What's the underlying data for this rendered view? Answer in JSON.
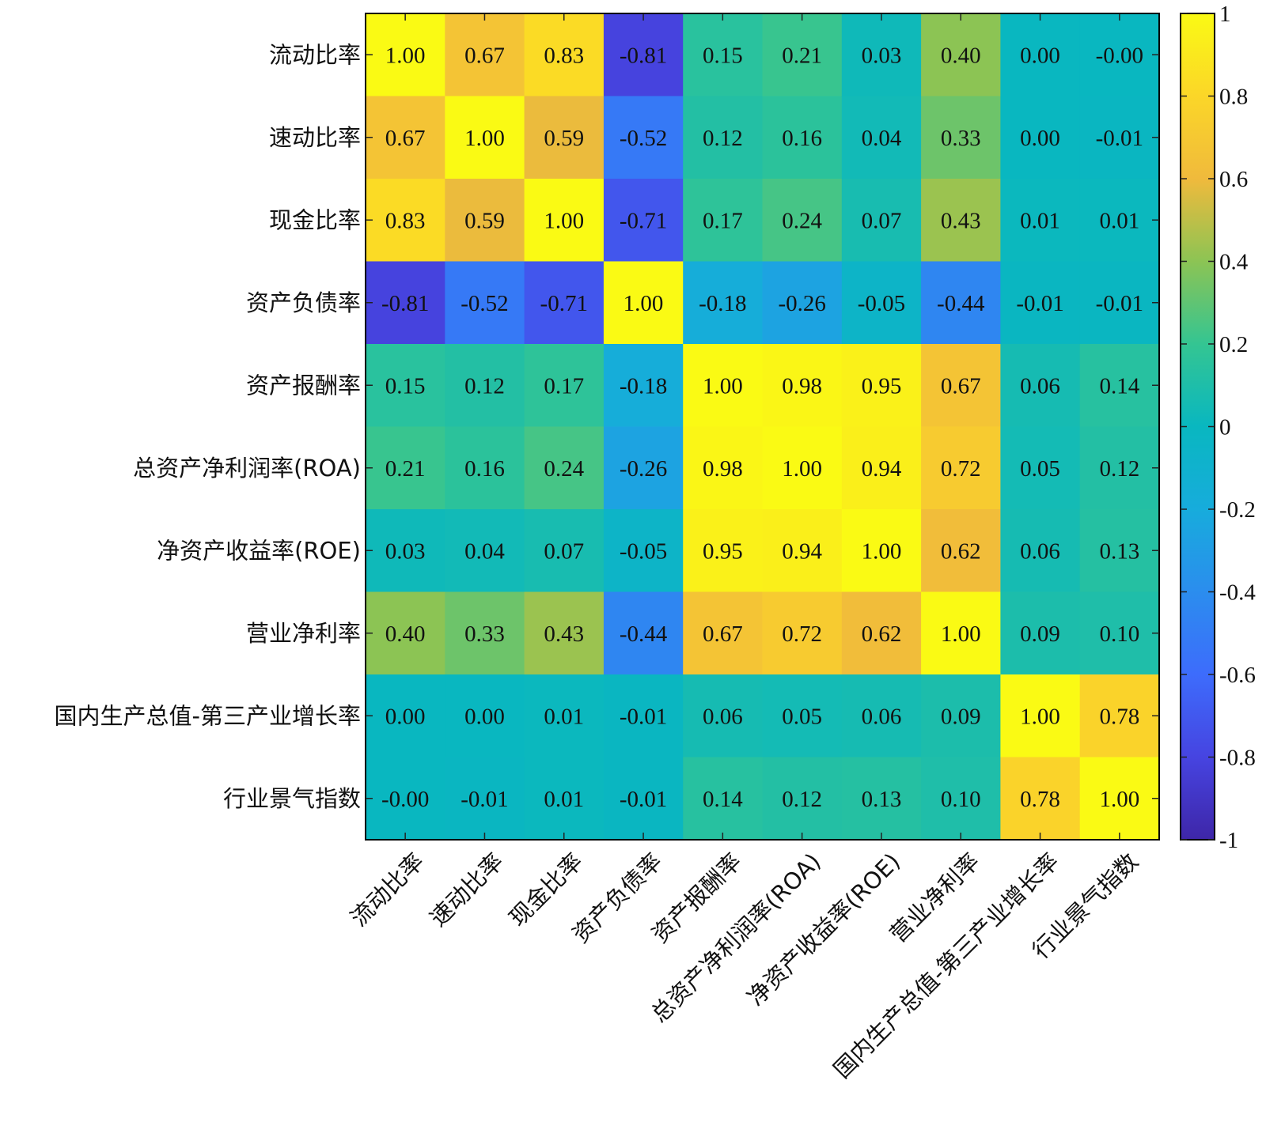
{
  "chart_data": {
    "type": "heatmap",
    "title": "",
    "xlabel": "",
    "ylabel": "",
    "row_labels": [
      "流动比率",
      "速动比率",
      "现金比率",
      "资产负债率",
      "资产报酬率",
      "总资产净利润率(ROA)",
      "净资产收益率(ROE)",
      "营业净利率",
      "国内生产总值-第三产业增长率",
      "行业景气指数"
    ],
    "col_labels": [
      "流动比率",
      "速动比率",
      "现金比率",
      "资产负债率",
      "资产报酬率",
      "总资产净利润率(ROA)",
      "净资产收益率(ROE)",
      "营业净利率",
      "国内生产总值-第三产业增长率",
      "行业景气指数"
    ],
    "values": [
      [
        1.0,
        0.67,
        0.83,
        -0.81,
        0.15,
        0.21,
        0.03,
        0.4,
        0.0,
        -0.0
      ],
      [
        0.67,
        1.0,
        0.59,
        -0.52,
        0.12,
        0.16,
        0.04,
        0.33,
        0.0,
        -0.01
      ],
      [
        0.83,
        0.59,
        1.0,
        -0.71,
        0.17,
        0.24,
        0.07,
        0.43,
        0.01,
        0.01
      ],
      [
        -0.81,
        -0.52,
        -0.71,
        1.0,
        -0.18,
        -0.26,
        -0.05,
        -0.44,
        -0.01,
        -0.01
      ],
      [
        0.15,
        0.12,
        0.17,
        -0.18,
        1.0,
        0.98,
        0.95,
        0.67,
        0.06,
        0.14
      ],
      [
        0.21,
        0.16,
        0.24,
        -0.26,
        0.98,
        1.0,
        0.94,
        0.72,
        0.05,
        0.12
      ],
      [
        0.03,
        0.04,
        0.07,
        -0.05,
        0.95,
        0.94,
        1.0,
        0.62,
        0.06,
        0.13
      ],
      [
        0.4,
        0.33,
        0.43,
        -0.44,
        0.67,
        0.72,
        0.62,
        1.0,
        0.09,
        0.1
      ],
      [
        0.0,
        0.0,
        0.01,
        -0.01,
        0.06,
        0.05,
        0.06,
        0.09,
        1.0,
        0.78
      ],
      [
        -0.0,
        -0.01,
        0.01,
        -0.01,
        0.14,
        0.12,
        0.13,
        0.1,
        0.78,
        1.0
      ]
    ],
    "value_labels": [
      [
        "1.00",
        "0.67",
        "0.83",
        "-0.81",
        "0.15",
        "0.21",
        "0.03",
        "0.40",
        "0.00",
        "-0.00"
      ],
      [
        "0.67",
        "1.00",
        "0.59",
        "-0.52",
        "0.12",
        "0.16",
        "0.04",
        "0.33",
        "0.00",
        "-0.01"
      ],
      [
        "0.83",
        "0.59",
        "1.00",
        "-0.71",
        "0.17",
        "0.24",
        "0.07",
        "0.43",
        "0.01",
        "0.01"
      ],
      [
        "-0.81",
        "-0.52",
        "-0.71",
        "1.00",
        "-0.18",
        "-0.26",
        "-0.05",
        "-0.44",
        "-0.01",
        "-0.01"
      ],
      [
        "0.15",
        "0.12",
        "0.17",
        "-0.18",
        "1.00",
        "0.98",
        "0.95",
        "0.67",
        "0.06",
        "0.14"
      ],
      [
        "0.21",
        "0.16",
        "0.24",
        "-0.26",
        "0.98",
        "1.00",
        "0.94",
        "0.72",
        "0.05",
        "0.12"
      ],
      [
        "0.03",
        "0.04",
        "0.07",
        "-0.05",
        "0.95",
        "0.94",
        "1.00",
        "0.62",
        "0.06",
        "0.13"
      ],
      [
        "0.40",
        "0.33",
        "0.43",
        "-0.44",
        "0.67",
        "0.72",
        "0.62",
        "1.00",
        "0.09",
        "0.10"
      ],
      [
        "0.00",
        "0.00",
        "0.01",
        "-0.01",
        "0.06",
        "0.05",
        "0.06",
        "0.09",
        "1.00",
        "0.78"
      ],
      [
        "-0.00",
        "-0.01",
        "0.01",
        "-0.01",
        "0.14",
        "0.12",
        "0.13",
        "0.10",
        "0.78",
        "1.00"
      ]
    ],
    "colormap": "parula",
    "colorbar": {
      "range": [
        -1,
        1
      ],
      "ticks": [
        1,
        0.8,
        0.6,
        0.4,
        0.2,
        0,
        -0.2,
        -0.4,
        -0.6,
        -0.8,
        -1
      ],
      "tick_labels": [
        "1",
        "0.8",
        "0.6",
        "0.4",
        "0.2",
        "0",
        "-0.2",
        "-0.4",
        "-0.6",
        "-0.8",
        "-1"
      ],
      "placement": "right"
    },
    "grid": false
  }
}
